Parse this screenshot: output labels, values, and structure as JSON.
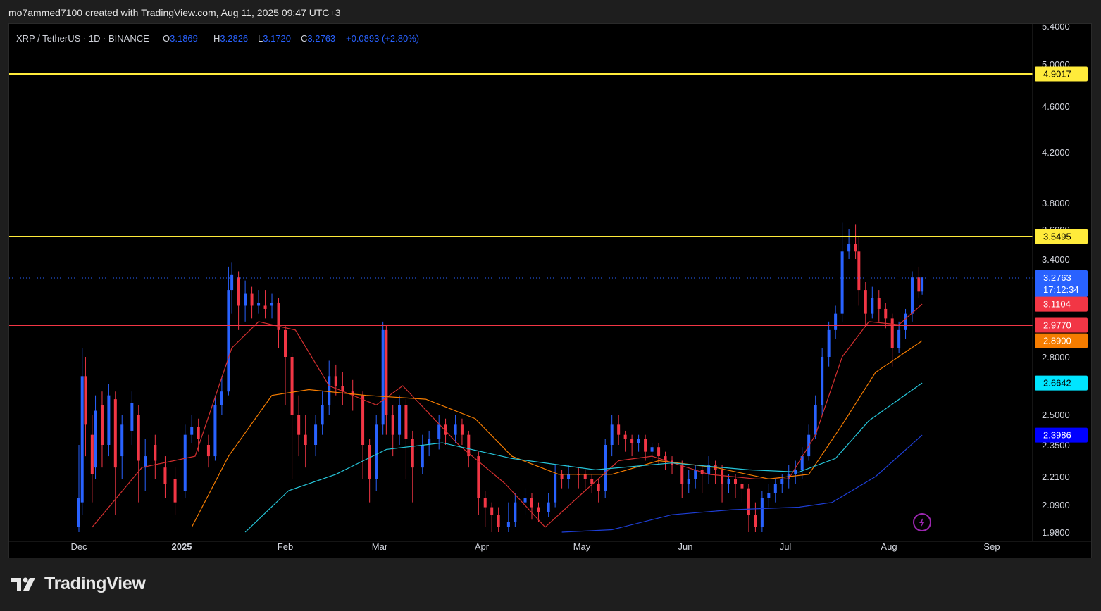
{
  "caption": "mo7ammed7100 created with TradingView.com, Aug 11, 2025 09:47 UTC+3",
  "brand": "TradingView",
  "legend": {
    "symbol": "XRP / TetherUS · 1D · BINANCE",
    "open_label": "O",
    "open": "3.1869",
    "high_label": "H",
    "high": "3.2826",
    "low_label": "L",
    "low": "3.1720",
    "close_label": "C",
    "close": "3.2763",
    "change": "+0.0893 (+2.80%)"
  },
  "colors": {
    "up": "#2962ff",
    "down": "#f23645",
    "level_yellow": "#ffeb3b",
    "level_red": "#f23645",
    "ma_red": "#d32f2f",
    "ma_orange": "#f57c00",
    "ma_teal": "#26c6da",
    "ma_blue": "#1e3fd8",
    "text_light": "#d1d4dc"
  },
  "chart_data": {
    "type": "candlestick",
    "interval": "1D",
    "x_axis": {
      "type": "date",
      "labels": [
        "Dec",
        "2025",
        "Feb",
        "Mar",
        "Apr",
        "May",
        "Jun",
        "Jul",
        "Aug",
        "Sep"
      ]
    },
    "y_axis": {
      "scale": "log",
      "ylim": [
        1.98,
        5.4
      ],
      "ticks": [
        "5.4000",
        "5.0000",
        "4.6000",
        "4.2000",
        "3.8000",
        "3.6000",
        "3.4000",
        "2.8000",
        "2.5000",
        "2.3500",
        "2.2100",
        "2.0900",
        "1.9800"
      ]
    },
    "horizontal_levels": [
      {
        "value": 4.9017,
        "label": "4.9017",
        "color": "#ffeb3b"
      },
      {
        "value": 3.5495,
        "label": "3.5495",
        "color": "#ffeb3b"
      },
      {
        "value": 2.977,
        "label": "2.9770",
        "color": "#f23645"
      }
    ],
    "price_badges": [
      {
        "value": 3.2763,
        "label": "3.2763",
        "sublabel": "17:12:34",
        "color": "#2962ff"
      },
      {
        "value": 3.1104,
        "label": "3.1104",
        "color": "#f23645"
      },
      {
        "value": 2.977,
        "label": "2.9770",
        "color": "#f23645"
      },
      {
        "value": 2.89,
        "label": "2.8900",
        "color": "#f57c00"
      },
      {
        "value": 2.6642,
        "label": "2.6642",
        "color": "#00e5ff"
      },
      {
        "value": 2.3986,
        "label": "2.3986",
        "color": "#0000ff"
      }
    ],
    "moving_averages": [
      {
        "color": "#d32f2f",
        "points": [
          [
            "2024-12-05",
            2.0
          ],
          [
            "2024-12-20",
            2.25
          ],
          [
            "2025-01-05",
            2.3
          ],
          [
            "2025-01-16",
            2.85
          ],
          [
            "2025-01-24",
            3.0
          ],
          [
            "2025-02-04",
            2.95
          ],
          [
            "2025-02-14",
            2.65
          ],
          [
            "2025-02-28",
            2.55
          ],
          [
            "2025-03-08",
            2.65
          ],
          [
            "2025-03-25",
            2.35
          ],
          [
            "2025-04-08",
            2.18
          ],
          [
            "2025-04-20",
            2.0
          ],
          [
            "2025-05-02",
            2.15
          ],
          [
            "2025-05-12",
            2.28
          ],
          [
            "2025-05-22",
            2.3
          ],
          [
            "2025-06-08",
            2.22
          ],
          [
            "2025-06-22",
            2.2
          ],
          [
            "2025-07-02",
            2.2
          ],
          [
            "2025-07-10",
            2.4
          ],
          [
            "2025-07-18",
            2.8
          ],
          [
            "2025-07-26",
            3.0
          ],
          [
            "2025-08-04",
            2.98
          ],
          [
            "2025-08-11",
            3.1104
          ]
        ]
      },
      {
        "color": "#f57c00",
        "points": [
          [
            "2025-01-04",
            2.0
          ],
          [
            "2025-01-15",
            2.3
          ],
          [
            "2025-01-28",
            2.6
          ],
          [
            "2025-02-08",
            2.63
          ],
          [
            "2025-02-25",
            2.6
          ],
          [
            "2025-03-15",
            2.58
          ],
          [
            "2025-03-30",
            2.48
          ],
          [
            "2025-04-10",
            2.3
          ],
          [
            "2025-04-24",
            2.22
          ],
          [
            "2025-05-10",
            2.22
          ],
          [
            "2025-05-24",
            2.28
          ],
          [
            "2025-06-10",
            2.25
          ],
          [
            "2025-06-26",
            2.2
          ],
          [
            "2025-07-08",
            2.22
          ],
          [
            "2025-07-18",
            2.45
          ],
          [
            "2025-07-28",
            2.72
          ],
          [
            "2025-08-11",
            2.89
          ]
        ]
      },
      {
        "color": "#26c6da",
        "points": [
          [
            "2025-01-20",
            1.98
          ],
          [
            "2025-02-02",
            2.15
          ],
          [
            "2025-02-16",
            2.22
          ],
          [
            "2025-03-03",
            2.33
          ],
          [
            "2025-03-20",
            2.36
          ],
          [
            "2025-04-10",
            2.29
          ],
          [
            "2025-05-05",
            2.24
          ],
          [
            "2025-05-28",
            2.27
          ],
          [
            "2025-06-20",
            2.24
          ],
          [
            "2025-07-05",
            2.23
          ],
          [
            "2025-07-16",
            2.29
          ],
          [
            "2025-07-26",
            2.47
          ],
          [
            "2025-08-11",
            2.6642
          ]
        ]
      },
      {
        "color": "#1e3fd8",
        "points": [
          [
            "2025-04-25",
            1.98
          ],
          [
            "2025-05-10",
            1.99
          ],
          [
            "2025-05-28",
            2.05
          ],
          [
            "2025-06-15",
            2.07
          ],
          [
            "2025-07-05",
            2.08
          ],
          [
            "2025-07-15",
            2.1
          ],
          [
            "2025-07-28",
            2.21
          ],
          [
            "2025-08-11",
            2.3986
          ]
        ]
      }
    ],
    "candles": [
      [
        "2024-12-01",
        2.0,
        2.12,
        1.95,
        2.35,
        "up"
      ],
      [
        "2024-12-02",
        2.1,
        2.7,
        2.05,
        2.85,
        "up"
      ],
      [
        "2024-12-03",
        2.7,
        2.45,
        2.3,
        2.8,
        "down"
      ],
      [
        "2024-12-05",
        2.4,
        2.22,
        2.1,
        2.5,
        "down"
      ],
      [
        "2024-12-06",
        2.25,
        2.52,
        2.2,
        2.6,
        "up"
      ],
      [
        "2024-12-08",
        2.55,
        2.35,
        2.25,
        2.62,
        "down"
      ],
      [
        "2024-12-10",
        2.35,
        2.6,
        2.3,
        2.66,
        "up"
      ],
      [
        "2024-12-12",
        2.58,
        2.25,
        2.05,
        2.62,
        "down"
      ],
      [
        "2024-12-14",
        2.3,
        2.45,
        2.2,
        2.5,
        "up"
      ],
      [
        "2024-12-17",
        2.42,
        2.56,
        2.35,
        2.62,
        "up"
      ],
      [
        "2024-12-19",
        2.5,
        2.28,
        2.1,
        2.55,
        "down"
      ],
      [
        "2024-12-21",
        2.25,
        2.3,
        2.15,
        2.38,
        "up"
      ],
      [
        "2024-12-24",
        2.35,
        2.28,
        2.2,
        2.4,
        "down"
      ],
      [
        "2024-12-27",
        2.25,
        2.18,
        2.12,
        2.3,
        "down"
      ],
      [
        "2024-12-30",
        2.2,
        2.1,
        2.05,
        2.25,
        "down"
      ],
      [
        "2025-01-02",
        2.15,
        2.4,
        2.12,
        2.45,
        "up"
      ],
      [
        "2025-01-04",
        2.4,
        2.44,
        2.36,
        2.5,
        "up"
      ],
      [
        "2025-01-06",
        2.44,
        2.38,
        2.32,
        2.48,
        "down"
      ],
      [
        "2025-01-09",
        2.35,
        2.3,
        2.25,
        2.4,
        "down"
      ],
      [
        "2025-01-11",
        2.3,
        2.55,
        2.28,
        2.6,
        "up"
      ],
      [
        "2025-01-13",
        2.55,
        2.62,
        2.5,
        2.7,
        "up"
      ],
      [
        "2025-01-15",
        2.62,
        3.2,
        2.6,
        3.35,
        "up"
      ],
      [
        "2025-01-16",
        3.2,
        3.3,
        3.05,
        3.38,
        "up"
      ],
      [
        "2025-01-18",
        3.28,
        3.1,
        2.95,
        3.32,
        "down"
      ],
      [
        "2025-01-20",
        3.1,
        3.18,
        3.0,
        3.26,
        "up"
      ],
      [
        "2025-01-22",
        3.18,
        3.1,
        3.02,
        3.22,
        "down"
      ],
      [
        "2025-01-24",
        3.1,
        3.12,
        3.05,
        3.2,
        "up"
      ],
      [
        "2025-01-26",
        3.1,
        3.08,
        3.02,
        3.2,
        "down"
      ],
      [
        "2025-01-28",
        3.1,
        3.12,
        3.02,
        3.18,
        "up"
      ],
      [
        "2025-01-30",
        3.12,
        2.95,
        2.85,
        3.15,
        "down"
      ],
      [
        "2025-02-01",
        2.95,
        2.8,
        2.55,
        2.98,
        "down"
      ],
      [
        "2025-02-03",
        2.8,
        2.5,
        2.2,
        2.82,
        "down"
      ],
      [
        "2025-02-05",
        2.5,
        2.4,
        2.3,
        2.6,
        "down"
      ],
      [
        "2025-02-07",
        2.4,
        2.35,
        2.25,
        2.5,
        "down"
      ],
      [
        "2025-02-10",
        2.35,
        2.45,
        2.3,
        2.5,
        "up"
      ],
      [
        "2025-02-12",
        2.45,
        2.55,
        2.4,
        2.62,
        "up"
      ],
      [
        "2025-02-14",
        2.55,
        2.7,
        2.5,
        2.78,
        "up"
      ],
      [
        "2025-02-16",
        2.7,
        2.65,
        2.6,
        2.76,
        "down"
      ],
      [
        "2025-02-18",
        2.65,
        2.62,
        2.55,
        2.72,
        "down"
      ],
      [
        "2025-02-21",
        2.62,
        2.6,
        2.52,
        2.68,
        "down"
      ],
      [
        "2025-02-24",
        2.6,
        2.35,
        2.2,
        2.62,
        "down"
      ],
      [
        "2025-02-26",
        2.35,
        2.2,
        2.1,
        2.38,
        "down"
      ],
      [
        "2025-02-28",
        2.2,
        2.45,
        2.15,
        2.5,
        "up"
      ],
      [
        "2025-03-02",
        2.45,
        2.95,
        2.4,
        3.0,
        "up"
      ],
      [
        "2025-03-03",
        2.95,
        2.5,
        2.4,
        2.98,
        "down"
      ],
      [
        "2025-03-05",
        2.5,
        2.4,
        2.3,
        2.55,
        "down"
      ],
      [
        "2025-03-07",
        2.4,
        2.55,
        2.35,
        2.6,
        "up"
      ],
      [
        "2025-03-09",
        2.55,
        2.38,
        2.2,
        2.58,
        "down"
      ],
      [
        "2025-03-11",
        2.38,
        2.25,
        2.1,
        2.42,
        "down"
      ],
      [
        "2025-03-14",
        2.25,
        2.35,
        2.22,
        2.4,
        "up"
      ],
      [
        "2025-03-16",
        2.35,
        2.38,
        2.3,
        2.42,
        "up"
      ],
      [
        "2025-03-19",
        2.38,
        2.45,
        2.33,
        2.5,
        "up"
      ],
      [
        "2025-03-21",
        2.45,
        2.4,
        2.35,
        2.48,
        "down"
      ],
      [
        "2025-03-24",
        2.4,
        2.45,
        2.36,
        2.5,
        "up"
      ],
      [
        "2025-03-26",
        2.45,
        2.4,
        2.35,
        2.48,
        "down"
      ],
      [
        "2025-03-28",
        2.4,
        2.3,
        2.25,
        2.42,
        "down"
      ],
      [
        "2025-03-31",
        2.3,
        2.12,
        2.05,
        2.32,
        "down"
      ],
      [
        "2025-04-02",
        2.12,
        2.08,
        2.0,
        2.15,
        "down"
      ],
      [
        "2025-04-04",
        2.08,
        2.05,
        1.98,
        2.1,
        "down"
      ],
      [
        "2025-04-06",
        2.05,
        2.0,
        1.98,
        2.08,
        "down"
      ],
      [
        "2025-04-09",
        2.0,
        2.02,
        1.98,
        2.1,
        "up"
      ],
      [
        "2025-04-11",
        2.02,
        2.1,
        2.0,
        2.14,
        "up"
      ],
      [
        "2025-04-14",
        2.1,
        2.12,
        2.05,
        2.16,
        "up"
      ],
      [
        "2025-04-16",
        2.12,
        2.08,
        2.03,
        2.14,
        "down"
      ],
      [
        "2025-04-18",
        2.08,
        2.06,
        2.02,
        2.1,
        "down"
      ],
      [
        "2025-04-21",
        2.06,
        2.1,
        2.04,
        2.14,
        "up"
      ],
      [
        "2025-04-23",
        2.1,
        2.22,
        2.08,
        2.26,
        "up"
      ],
      [
        "2025-04-25",
        2.22,
        2.2,
        2.16,
        2.24,
        "down"
      ],
      [
        "2025-04-27",
        2.2,
        2.22,
        2.16,
        2.26,
        "up"
      ],
      [
        "2025-04-30",
        2.22,
        2.22,
        2.16,
        2.25,
        "down"
      ],
      [
        "2025-05-02",
        2.22,
        2.2,
        2.16,
        2.24,
        "down"
      ],
      [
        "2025-05-04",
        2.2,
        2.18,
        2.14,
        2.22,
        "down"
      ],
      [
        "2025-05-06",
        2.18,
        2.15,
        2.1,
        2.2,
        "down"
      ],
      [
        "2025-05-08",
        2.15,
        2.35,
        2.12,
        2.38,
        "up"
      ],
      [
        "2025-05-10",
        2.35,
        2.45,
        2.3,
        2.5,
        "up"
      ],
      [
        "2025-05-12",
        2.45,
        2.4,
        2.35,
        2.5,
        "down"
      ],
      [
        "2025-05-14",
        2.4,
        2.38,
        2.32,
        2.42,
        "down"
      ],
      [
        "2025-05-16",
        2.38,
        2.36,
        2.3,
        2.4,
        "down"
      ],
      [
        "2025-05-18",
        2.36,
        2.38,
        2.32,
        2.4,
        "up"
      ],
      [
        "2025-05-20",
        2.38,
        2.32,
        2.28,
        2.4,
        "down"
      ],
      [
        "2025-05-22",
        2.32,
        2.34,
        2.28,
        2.36,
        "up"
      ],
      [
        "2025-05-24",
        2.34,
        2.3,
        2.26,
        2.36,
        "down"
      ],
      [
        "2025-05-26",
        2.3,
        2.28,
        2.24,
        2.32,
        "down"
      ],
      [
        "2025-05-28",
        2.28,
        2.26,
        2.22,
        2.3,
        "down"
      ],
      [
        "2025-05-31",
        2.26,
        2.18,
        2.12,
        2.28,
        "down"
      ],
      [
        "2025-06-02",
        2.18,
        2.2,
        2.14,
        2.24,
        "up"
      ],
      [
        "2025-06-04",
        2.2,
        2.24,
        2.16,
        2.26,
        "up"
      ],
      [
        "2025-06-06",
        2.24,
        2.22,
        2.14,
        2.26,
        "down"
      ],
      [
        "2025-06-08",
        2.22,
        2.26,
        2.18,
        2.3,
        "up"
      ],
      [
        "2025-06-10",
        2.26,
        2.24,
        2.18,
        2.28,
        "down"
      ],
      [
        "2025-06-12",
        2.24,
        2.18,
        2.1,
        2.26,
        "down"
      ],
      [
        "2025-06-14",
        2.18,
        2.2,
        2.14,
        2.22,
        "up"
      ],
      [
        "2025-06-16",
        2.2,
        2.18,
        2.12,
        2.22,
        "down"
      ],
      [
        "2025-06-18",
        2.18,
        2.16,
        2.1,
        2.2,
        "down"
      ],
      [
        "2025-06-20",
        2.16,
        2.05,
        1.98,
        2.18,
        "down"
      ],
      [
        "2025-06-22",
        2.05,
        2.0,
        1.98,
        2.1,
        "down"
      ],
      [
        "2025-06-24",
        2.0,
        2.12,
        1.98,
        2.15,
        "up"
      ],
      [
        "2025-06-26",
        2.12,
        2.14,
        2.08,
        2.18,
        "up"
      ],
      [
        "2025-06-28",
        2.14,
        2.18,
        2.1,
        2.2,
        "up"
      ],
      [
        "2025-06-30",
        2.18,
        2.2,
        2.14,
        2.22,
        "up"
      ],
      [
        "2025-07-02",
        2.2,
        2.22,
        2.16,
        2.26,
        "up"
      ],
      [
        "2025-07-04",
        2.22,
        2.24,
        2.18,
        2.28,
        "up"
      ],
      [
        "2025-07-06",
        2.24,
        2.3,
        2.2,
        2.34,
        "up"
      ],
      [
        "2025-07-08",
        2.3,
        2.4,
        2.28,
        2.45,
        "up"
      ],
      [
        "2025-07-10",
        2.4,
        2.55,
        2.38,
        2.6,
        "up"
      ],
      [
        "2025-07-12",
        2.55,
        2.8,
        2.5,
        2.85,
        "up"
      ],
      [
        "2025-07-14",
        2.8,
        2.95,
        2.75,
        3.0,
        "up"
      ],
      [
        "2025-07-16",
        2.95,
        3.05,
        2.9,
        3.1,
        "up"
      ],
      [
        "2025-07-18",
        3.05,
        3.45,
        3.0,
        3.65,
        "up"
      ],
      [
        "2025-07-20",
        3.45,
        3.5,
        3.4,
        3.6,
        "up"
      ],
      [
        "2025-07-22",
        3.5,
        3.45,
        3.4,
        3.64,
        "down"
      ],
      [
        "2025-07-23",
        3.45,
        3.2,
        3.1,
        3.55,
        "down"
      ],
      [
        "2025-07-25",
        3.2,
        3.05,
        2.98,
        3.25,
        "down"
      ],
      [
        "2025-07-27",
        3.05,
        3.15,
        3.02,
        3.22,
        "up"
      ],
      [
        "2025-07-29",
        3.15,
        3.08,
        3.0,
        3.2,
        "down"
      ],
      [
        "2025-07-31",
        3.08,
        3.02,
        2.96,
        3.12,
        "down"
      ],
      [
        "2025-08-02",
        3.02,
        2.85,
        2.75,
        3.05,
        "down"
      ],
      [
        "2025-08-04",
        2.85,
        2.95,
        2.82,
        3.0,
        "up"
      ],
      [
        "2025-08-06",
        2.95,
        3.05,
        2.9,
        3.08,
        "up"
      ],
      [
        "2025-08-08",
        3.05,
        3.28,
        3.0,
        3.32,
        "up"
      ],
      [
        "2025-08-10",
        3.28,
        3.19,
        3.15,
        3.35,
        "down"
      ],
      [
        "2025-08-11",
        3.19,
        3.28,
        3.17,
        3.28,
        "up"
      ]
    ]
  }
}
